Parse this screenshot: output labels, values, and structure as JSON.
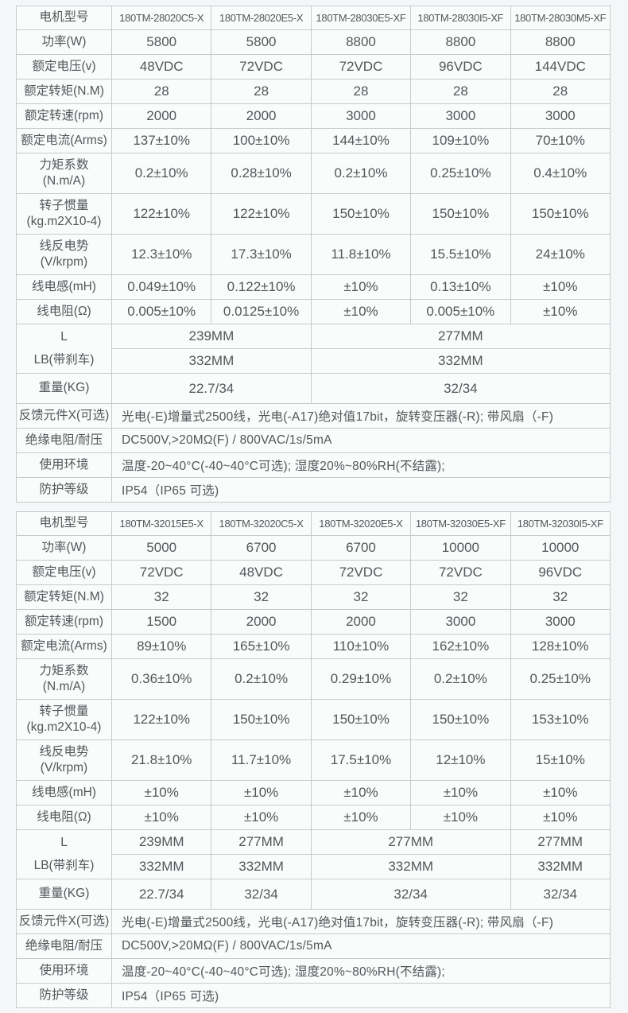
{
  "colors": {
    "page_bg": "#f5f6f7",
    "cell_bg": "#fafbfb",
    "border": "#c9cacc",
    "text": "#54565a"
  },
  "tables": [
    {
      "series": "180TM-28",
      "model_row": {
        "label": "电机型号",
        "models": [
          "180TM-28020C5-X",
          "180TM-28020E5-X",
          "180TM-28030E5-XF",
          "180TM-28030I5-XF",
          "180TM-28030M5-XF"
        ]
      },
      "spec_rows": [
        {
          "label": "功率(W)",
          "values": [
            "5800",
            "5800",
            "8800",
            "8800",
            "8800"
          ]
        },
        {
          "label": "额定电压(v)",
          "values": [
            "48VDC",
            "72VDC",
            "72VDC",
            "96VDC",
            "144VDC"
          ]
        },
        {
          "label": "额定转矩(N.M)",
          "values": [
            "28",
            "28",
            "28",
            "28",
            "28"
          ]
        },
        {
          "label": "额定转速(rpm)",
          "values": [
            "2000",
            "2000",
            "3000",
            "3000",
            "3000"
          ]
        },
        {
          "label": "额定电流(Arms)",
          "values": [
            "137±10%",
            "100±10%",
            "144±10%",
            "109±10%",
            "70±10%"
          ]
        },
        {
          "label": "力矩系数\n(N.m/A)",
          "tall": true,
          "values": [
            "0.2±10%",
            "0.28±10%",
            "0.2±10%",
            "0.25±10%",
            "0.4±10%"
          ]
        },
        {
          "label": "转子惯量\n(kg.m2X10-4)",
          "tall": true,
          "values": [
            "122±10%",
            "122±10%",
            "150±10%",
            "150±10%",
            "150±10%"
          ]
        },
        {
          "label": "线反电势\n(V/krpm)",
          "tall": true,
          "values": [
            "12.3±10%",
            "17.3±10%",
            "11.8±10%",
            "15.5±10%",
            "24±10%"
          ]
        },
        {
          "label": "线电感(mH)",
          "values": [
            "0.049±10%",
            "0.122±10%",
            "±10%",
            "0.13±10%",
            "±10%"
          ]
        },
        {
          "label": "线电阻(Ω)",
          "values": [
            "0.005±10%",
            "0.0125±10%",
            "±10%",
            "0.005±10%",
            "±10%"
          ]
        }
      ],
      "dimension_rows": {
        "l_label": "L",
        "lb_label": "LB(带刹车)",
        "l_cells": [
          {
            "text": "239MM",
            "span": 2
          },
          {
            "text": "277MM",
            "span": 3
          }
        ],
        "lb_cells": [
          {
            "text": "332MM",
            "span": 2
          },
          {
            "text": "332MM",
            "span": 3
          }
        ],
        "weight_label": "重量(KG)",
        "weight_cells": [
          {
            "text": "22.7/34",
            "span": 2
          },
          {
            "text": "32/34",
            "span": 3
          }
        ]
      },
      "info_rows": [
        {
          "label": "反馈元件X(可选)",
          "value": "光电(-E)增量式2500线，光电(-A17)绝对值17bit，旋转变压器(-R); 带风扇（-F)"
        },
        {
          "label": "绝缘电阻/耐压",
          "value": "DC500V,>20MΩ(F) / 800VAC/1s/5mA"
        },
        {
          "label": "使用环境",
          "value": "温度-20~40°C(-40~40°C可选); 湿度20%~80%RH(不结露);"
        },
        {
          "label": "防护等级",
          "value": "IP54（IP65 可选)"
        }
      ]
    },
    {
      "series": "180TM-32",
      "model_row": {
        "label": "电机型号",
        "models": [
          "180TM-32015E5-X",
          "180TM-32020C5-X",
          "180TM-32020E5-X",
          "180TM-32030E5-XF",
          "180TM-32030I5-XF"
        ]
      },
      "spec_rows": [
        {
          "label": "功率(W)",
          "values": [
            "5000",
            "6700",
            "6700",
            "10000",
            "10000"
          ]
        },
        {
          "label": "额定电压(v)",
          "values": [
            "72VDC",
            "48VDC",
            "72VDC",
            "72VDC",
            "96VDC"
          ]
        },
        {
          "label": "额定转矩(N.M)",
          "values": [
            "32",
            "32",
            "32",
            "32",
            "32"
          ]
        },
        {
          "label": "额定转速(rpm)",
          "values": [
            "1500",
            "2000",
            "2000",
            "3000",
            "3000"
          ]
        },
        {
          "label": "额定电流(Arms)",
          "values": [
            "89±10%",
            "165±10%",
            "110±10%",
            "162±10%",
            "128±10%"
          ]
        },
        {
          "label": "力矩系数\n(N.m/A)",
          "tall": true,
          "values": [
            "0.36±10%",
            "0.2±10%",
            "0.29±10%",
            "0.2±10%",
            "0.25±10%"
          ]
        },
        {
          "label": "转子惯量\n(kg.m2X10-4)",
          "tall": true,
          "values": [
            "122±10%",
            "150±10%",
            "150±10%",
            "150±10%",
            "153±10%"
          ]
        },
        {
          "label": "线反电势\n(V/krpm)",
          "tall": true,
          "values": [
            "21.8±10%",
            "11.7±10%",
            "17.5±10%",
            "12±10%",
            "15±10%"
          ]
        },
        {
          "label": "线电感(mH)",
          "values": [
            "±10%",
            "±10%",
            "±10%",
            "±10%",
            "±10%"
          ]
        },
        {
          "label": "线电阻(Ω)",
          "values": [
            "±10%",
            "±10%",
            "±10%",
            "±10%",
            "±10%"
          ]
        }
      ],
      "dimension_rows": {
        "l_label": "L",
        "lb_label": "LB(带刹车)",
        "l_cells": [
          {
            "text": "239MM",
            "span": 1
          },
          {
            "text": "277MM",
            "span": 1
          },
          {
            "text": "277MM",
            "span": 2
          },
          {
            "text": "277MM",
            "span": 1
          }
        ],
        "lb_cells": [
          {
            "text": "332MM",
            "span": 1
          },
          {
            "text": "332MM",
            "span": 1
          },
          {
            "text": "332MM",
            "span": 2
          },
          {
            "text": "332MM",
            "span": 1
          }
        ],
        "weight_label": "重量(KG)",
        "weight_cells": [
          {
            "text": "22.7/34",
            "span": 1
          },
          {
            "text": "32/34",
            "span": 1
          },
          {
            "text": "32/34",
            "span": 2
          },
          {
            "text": "32/34",
            "span": 1
          }
        ]
      },
      "info_rows": [
        {
          "label": "反馈元件X(可选)",
          "value": "光电(-E)增量式2500线，光电(-A17)绝对值17bit，旋转变压器(-R); 带风扇（-F)"
        },
        {
          "label": "绝缘电阻/耐压",
          "value": "DC500V,>20MΩ(F) / 800VAC/1s/5mA"
        },
        {
          "label": "使用环境",
          "value": "温度-20~40°C(-40~40°C可选); 湿度20%~80%RH(不结露);"
        },
        {
          "label": "防护等级",
          "value": "IP54（IP65 可选)"
        }
      ]
    }
  ]
}
